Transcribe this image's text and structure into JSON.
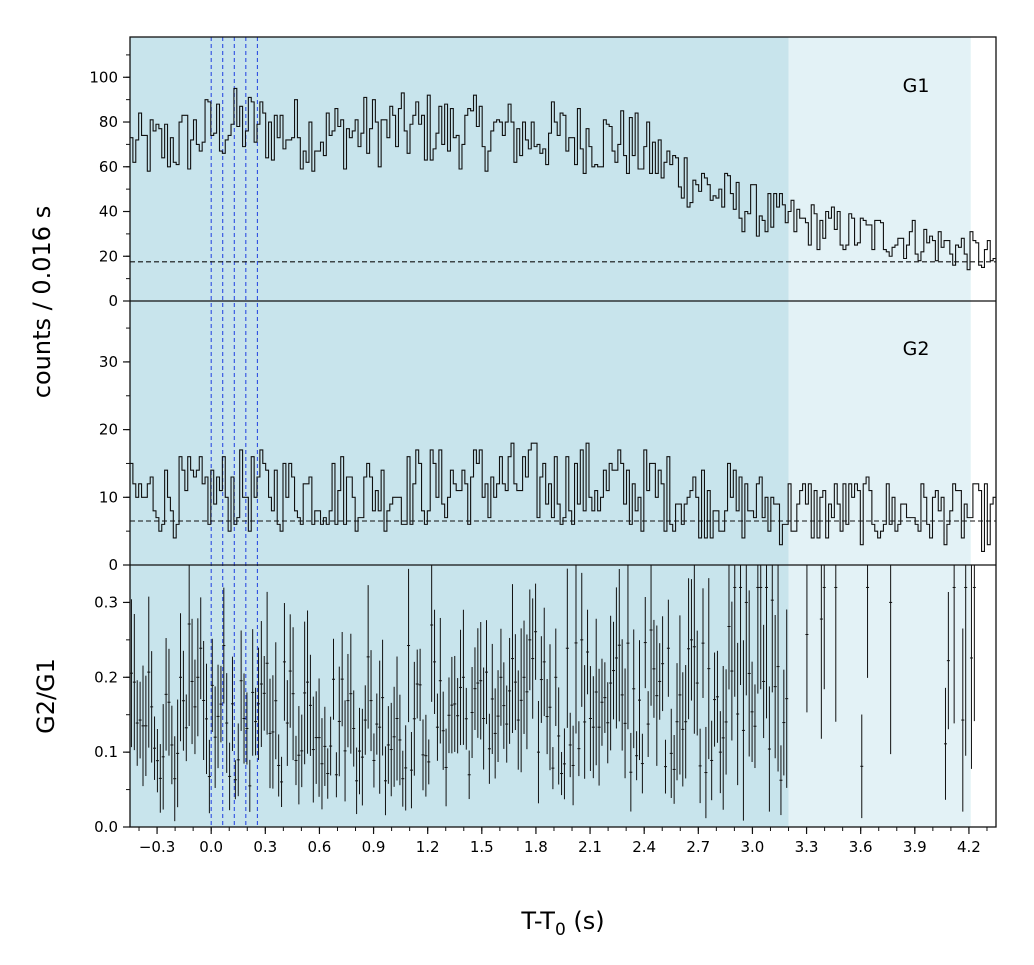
{
  "chart_data": {
    "type": "line",
    "xlabel": "T-T",
    "xlabel_sub": "0",
    "xlabel_unit": " (s)",
    "x_range": [
      -0.45,
      4.35
    ],
    "x_ticks": [
      -0.3,
      0.0,
      0.3,
      0.6,
      0.9,
      1.2,
      1.5,
      1.8,
      2.1,
      2.4,
      2.7,
      3.0,
      3.3,
      3.6,
      3.9,
      4.2
    ],
    "x_tick_labels": [
      "−0.3",
      "0.0",
      "0.3",
      "0.6",
      "0.9",
      "1.2",
      "1.5",
      "1.8",
      "2.1",
      "2.4",
      "2.7",
      "3.0",
      "3.3",
      "3.6",
      "3.9",
      "4.2"
    ],
    "shared_ylabel": "counts /  0.016 s",
    "bin_width": 0.016,
    "regions": [
      {
        "x_start": -0.45,
        "x_end": 3.2,
        "color": "#c8e4ec"
      },
      {
        "x_start": 3.2,
        "x_end": 4.21,
        "color": "#e3f2f6"
      }
    ],
    "vertical_markers": [
      0.0,
      0.064,
      0.128,
      0.192,
      0.256
    ],
    "marker_color": "#1f3fe0",
    "panels": [
      {
        "name": "G1",
        "label": "G1",
        "y_range": [
          0,
          118
        ],
        "y_ticks": [
          0,
          20,
          40,
          60,
          80,
          100
        ],
        "y_tick_labels": [
          "0",
          "20",
          "40",
          "60",
          "80",
          "100"
        ],
        "background_level": 17.5,
        "anchors_x": [
          -0.45,
          -0.3,
          -0.15,
          0.0,
          0.15,
          0.3,
          0.6,
          0.9,
          1.2,
          1.5,
          1.8,
          2.1,
          2.3,
          2.5,
          2.7,
          2.9,
          3.1,
          3.3,
          3.6,
          3.9,
          4.2,
          4.35
        ],
        "anchors_y": [
          68,
          69,
          71,
          77,
          79,
          77,
          74,
          76,
          77,
          75,
          74,
          73,
          71,
          62,
          53,
          44,
          38,
          34,
          30,
          28,
          22,
          19
        ]
      },
      {
        "name": "G2",
        "label": "G2",
        "y_range": [
          0,
          39
        ],
        "y_ticks": [
          0,
          10,
          20,
          30
        ],
        "y_tick_labels": [
          "0",
          "10",
          "20",
          "30"
        ],
        "background_level": 6.5,
        "anchors_x": [
          -0.45,
          0.3,
          0.9,
          1.5,
          1.8,
          2.1,
          2.7,
          3.0,
          3.3,
          3.9,
          4.35
        ],
        "anchors_y": [
          10,
          11,
          11,
          12,
          12,
          12,
          10,
          9,
          8,
          8,
          7
        ]
      },
      {
        "name": "G2/G1",
        "label": "G2/G1",
        "y_range": [
          0,
          0.35
        ],
        "y_ticks": [
          0.0,
          0.1,
          0.2,
          0.3
        ],
        "y_tick_labels": [
          "0.0",
          "0.1",
          "0.2",
          "0.3"
        ],
        "ratio_mean": 0.13
      }
    ]
  }
}
